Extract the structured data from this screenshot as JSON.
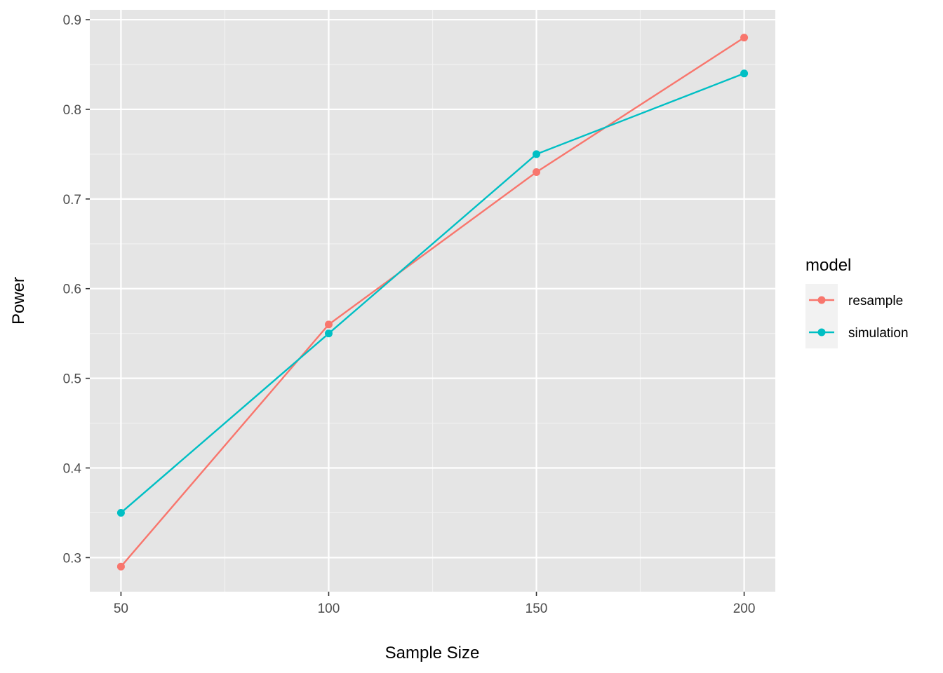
{
  "chart_data": {
    "type": "line",
    "xlabel": "Sample Size",
    "ylabel": "Power",
    "x": [
      50,
      100,
      150,
      200
    ],
    "xlim": [
      42.5,
      207.5
    ],
    "ylim": [
      0.262,
      0.911
    ],
    "x_ticks": [
      50,
      100,
      150,
      200
    ],
    "x_tick_labels": [
      "50",
      "100",
      "150",
      "200"
    ],
    "x_minor_ticks": [
      75,
      125,
      175
    ],
    "y_ticks": [
      0.3,
      0.4,
      0.5,
      0.6,
      0.7,
      0.8,
      0.9
    ],
    "y_tick_labels": [
      "0.3",
      "0.4",
      "0.5",
      "0.6",
      "0.7",
      "0.8",
      "0.9"
    ],
    "y_minor_ticks": [
      0.25,
      0.35,
      0.45,
      0.55,
      0.65,
      0.75,
      0.85
    ],
    "grid": true,
    "legend": {
      "title": "model",
      "placement": "right"
    },
    "series": [
      {
        "name": "resample",
        "color": "#F8766D",
        "values": [
          0.29,
          0.56,
          0.73,
          0.88
        ]
      },
      {
        "name": "simulation",
        "color": "#00BFC4",
        "values": [
          0.35,
          0.55,
          0.75,
          0.84
        ]
      }
    ]
  }
}
